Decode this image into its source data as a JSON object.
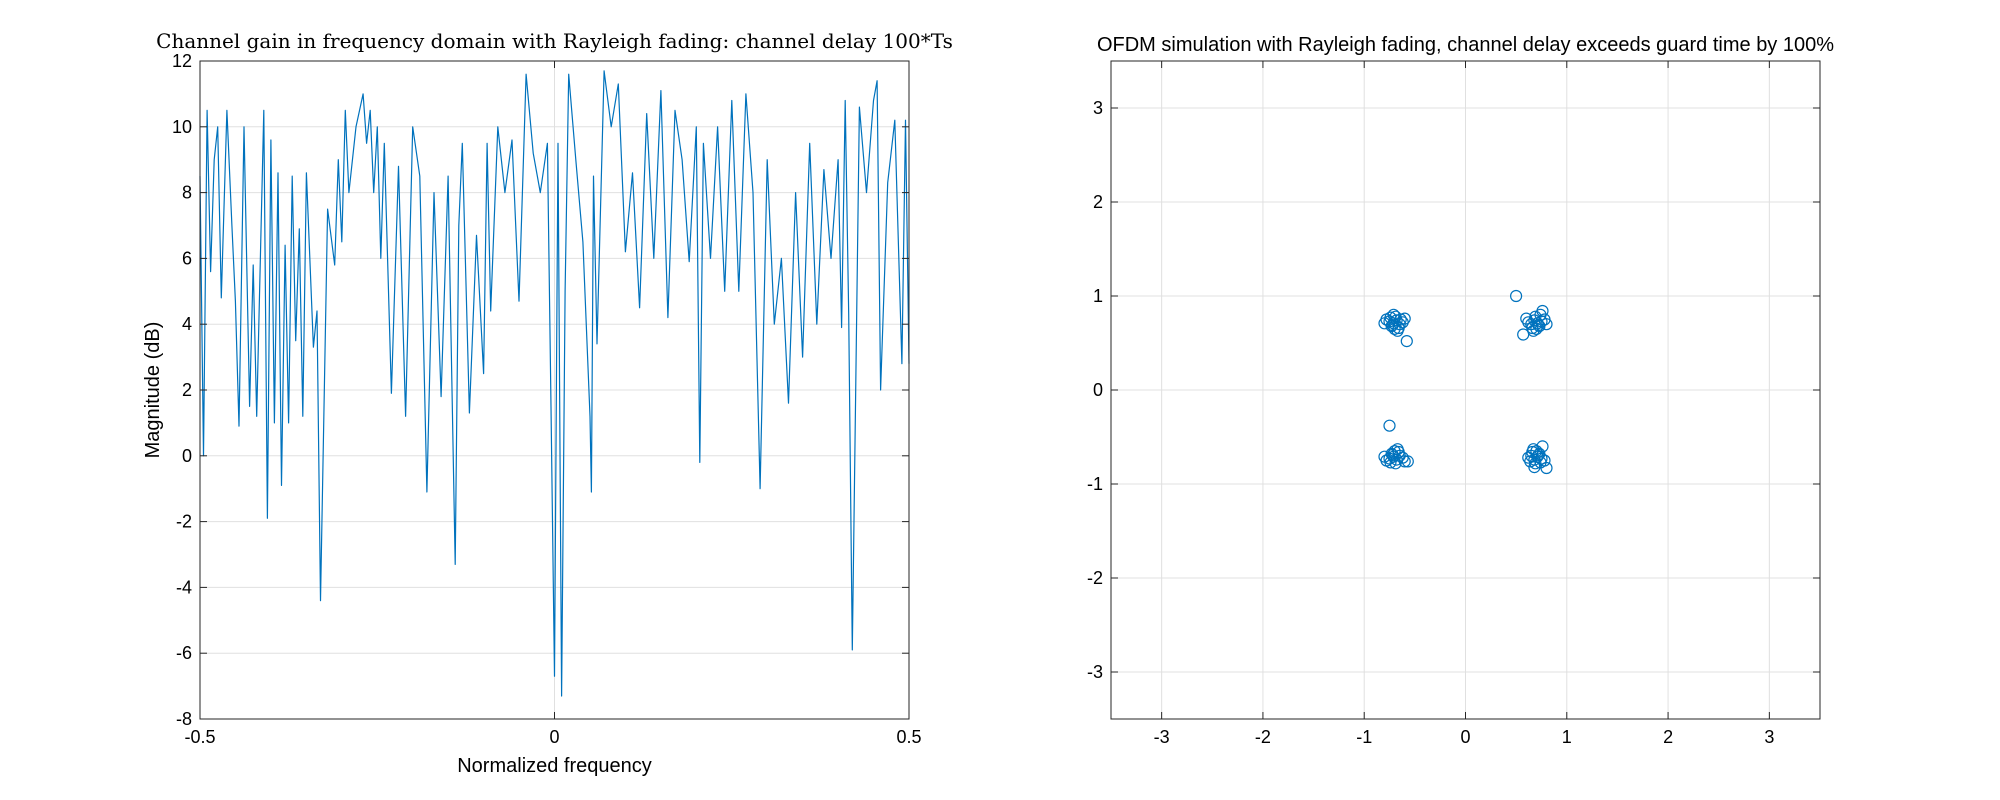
{
  "colors": {
    "series": "#0072bd",
    "grid": "#e0e0e0",
    "axis": "#262626"
  },
  "chart_data": [
    {
      "type": "line",
      "title": "Channel gain in frequency domain with Rayleigh fading: channel delay 100*Ts",
      "xlabel": "Normalized frequency",
      "ylabel": "Magnitude (dB)",
      "xlim": [
        -0.5,
        0.5
      ],
      "ylim": [
        -8,
        12
      ],
      "xticks": [
        -0.5,
        0,
        0.5
      ],
      "xtick_labels": [
        "-0.5",
        "0",
        "0.5"
      ],
      "yticks": [
        -8,
        -6,
        -4,
        -2,
        0,
        2,
        4,
        6,
        8,
        10,
        12
      ],
      "ytick_labels": [
        "-8",
        "-6",
        "-4",
        "-2",
        "0",
        "2",
        "4",
        "6",
        "8",
        "10",
        "12"
      ],
      "grid": true,
      "series": [
        {
          "x": [
            -0.5,
            -0.495,
            -0.49,
            -0.485,
            -0.48,
            -0.475,
            -0.47,
            -0.462,
            -0.455,
            -0.45,
            -0.445,
            -0.438,
            -0.43,
            -0.425,
            -0.42,
            -0.41,
            -0.405,
            -0.4,
            -0.395,
            -0.39,
            -0.385,
            -0.38,
            -0.375,
            -0.37,
            -0.365,
            -0.36,
            -0.355,
            -0.35,
            -0.34,
            -0.335,
            -0.33,
            -0.32,
            -0.31,
            -0.305,
            -0.3,
            -0.295,
            -0.29,
            -0.28,
            -0.27,
            -0.265,
            -0.26,
            -0.255,
            -0.25,
            -0.245,
            -0.24,
            -0.23,
            -0.22,
            -0.21,
            -0.2,
            -0.19,
            -0.18,
            -0.17,
            -0.16,
            -0.15,
            -0.14,
            -0.135,
            -0.13,
            -0.12,
            -0.11,
            -0.1,
            -0.095,
            -0.09,
            -0.08,
            -0.07,
            -0.06,
            -0.05,
            -0.04,
            -0.03,
            -0.02,
            -0.01,
            -0.005,
            0,
            0.005,
            0.01,
            0.015,
            0.02,
            0.03,
            0.04,
            0.05,
            0.052,
            0.055,
            0.06,
            0.07,
            0.08,
            0.09,
            0.1,
            0.11,
            0.12,
            0.13,
            0.14,
            0.15,
            0.16,
            0.17,
            0.18,
            0.19,
            0.2,
            0.205,
            0.21,
            0.22,
            0.23,
            0.24,
            0.25,
            0.26,
            0.27,
            0.28,
            0.29,
            0.3,
            0.31,
            0.32,
            0.33,
            0.34,
            0.35,
            0.36,
            0.37,
            0.38,
            0.39,
            0.4,
            0.405,
            0.41,
            0.415,
            0.42,
            0.43,
            0.44,
            0.45,
            0.455,
            0.46,
            0.47,
            0.48,
            0.49,
            0.495,
            0.5
          ],
          "y": [
            8.5,
            0,
            10.5,
            5.6,
            9.0,
            10.0,
            4.8,
            10.5,
            7.0,
            4.7,
            0.9,
            10.0,
            1.5,
            5.8,
            1.2,
            10.5,
            -1.9,
            9.6,
            1.0,
            8.6,
            -0.9,
            6.4,
            1.0,
            8.5,
            3.5,
            6.9,
            1.2,
            8.6,
            3.3,
            4.4,
            -4.4,
            7.5,
            5.8,
            9.0,
            6.5,
            10.5,
            8.0,
            10.0,
            11.0,
            9.5,
            10.5,
            8.0,
            10.0,
            6.0,
            9.5,
            1.9,
            8.8,
            1.2,
            10.0,
            8.5,
            -1.1,
            8.0,
            1.8,
            8.5,
            -3.3,
            7.0,
            9.5,
            1.3,
            6.7,
            2.5,
            9.5,
            4.4,
            10.0,
            8.0,
            9.6,
            4.7,
            11.6,
            9.2,
            8.0,
            9.5,
            1.5,
            -6.7,
            9.5,
            -7.3,
            5.0,
            11.6,
            9.0,
            6.5,
            1.2,
            -1.1,
            8.5,
            3.4,
            11.7,
            10.0,
            11.3,
            6.2,
            8.6,
            4.5,
            10.4,
            6.0,
            11.1,
            4.2,
            10.5,
            9.0,
            5.9,
            10.0,
            -0.2,
            9.5,
            6.0,
            10.0,
            5.0,
            10.8,
            5.0,
            11.0,
            8.0,
            -1.0,
            9.0,
            4.0,
            6.0,
            1.6,
            8.0,
            3.0,
            9.5,
            4.0,
            8.7,
            6.0,
            9.0,
            3.9,
            10.8,
            4.3,
            -5.9,
            10.6,
            8.0,
            10.8,
            11.4,
            2.0,
            8.3,
            10.2,
            2.8,
            10.2,
            2.8
          ]
        }
      ]
    },
    {
      "type": "scatter",
      "title": "OFDM simulation with Rayleigh fading, channel delay exceeds guard time by 100%",
      "xlabel": "",
      "ylabel": "",
      "xlim": [
        -3.5,
        3.5
      ],
      "ylim": [
        -3.5,
        3.5
      ],
      "xticks": [
        -3,
        -2,
        -1,
        0,
        1,
        2,
        3
      ],
      "xtick_labels": [
        "-3",
        "-2",
        "-1",
        "0",
        "1",
        "2",
        "3"
      ],
      "yticks": [
        -3,
        -2,
        -1,
        0,
        1,
        2,
        3
      ],
      "ytick_labels": [
        "-3",
        "-2",
        "-1",
        "0",
        "1",
        "2",
        "3"
      ],
      "grid": true,
      "marker": "circle",
      "series": [
        {
          "x": [
            -0.71,
            -0.68,
            -0.73,
            -0.65,
            -0.75,
            -0.7,
            -0.62,
            -0.78,
            -0.69,
            -0.72,
            -0.66,
            -0.74,
            -0.6,
            -0.67,
            -0.8,
            -0.71,
            -0.58,
            -0.64,
            0.71,
            0.68,
            0.73,
            0.65,
            0.75,
            0.7,
            0.62,
            0.78,
            0.69,
            0.72,
            0.66,
            0.74,
            0.6,
            0.67,
            0.8,
            0.5,
            0.57,
            0.76,
            -0.71,
            -0.68,
            -0.73,
            -0.65,
            -0.75,
            -0.7,
            -0.62,
            -0.78,
            -0.69,
            -0.72,
            -0.66,
            -0.74,
            -0.6,
            -0.67,
            -0.8,
            -0.75,
            -0.57,
            0.71,
            0.68,
            0.73,
            0.65,
            0.75,
            0.7,
            0.62,
            0.78,
            0.69,
            0.72,
            0.66,
            0.74,
            0.64,
            0.67,
            0.8,
            0.76,
            0.68
          ],
          "y": [
            0.71,
            0.74,
            0.68,
            0.7,
            0.73,
            0.65,
            0.72,
            0.75,
            0.78,
            0.69,
            0.66,
            0.77,
            0.76,
            0.63,
            0.71,
            0.8,
            0.52,
            0.75,
            0.71,
            0.74,
            0.68,
            0.7,
            0.73,
            0.65,
            0.72,
            0.75,
            0.78,
            0.69,
            0.66,
            0.8,
            0.76,
            0.63,
            0.7,
            1.0,
            0.59,
            0.84,
            -0.71,
            -0.74,
            -0.68,
            -0.7,
            -0.73,
            -0.65,
            -0.72,
            -0.75,
            -0.78,
            -0.69,
            -0.66,
            -0.77,
            -0.76,
            -0.63,
            -0.71,
            -0.38,
            -0.76,
            -0.71,
            -0.74,
            -0.68,
            -0.7,
            -0.73,
            -0.65,
            -0.72,
            -0.75,
            -0.78,
            -0.69,
            -0.66,
            -0.77,
            -0.76,
            -0.63,
            -0.83,
            -0.6,
            -0.82
          ]
        }
      ]
    }
  ]
}
